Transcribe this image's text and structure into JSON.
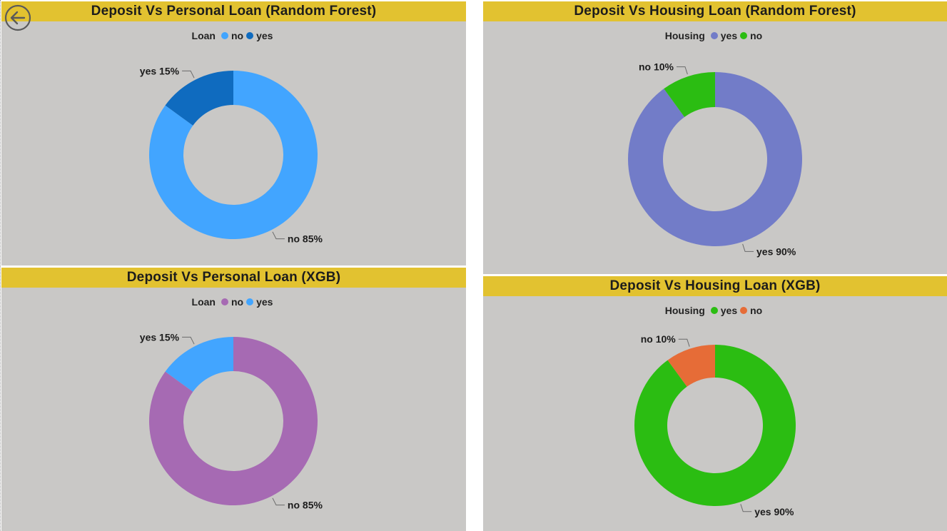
{
  "colors": {
    "title_bar": "#e2c230",
    "panel_bg": "#c9c8c6"
  },
  "chart_data": [
    {
      "type": "pie",
      "title": "Deposit Vs Personal Loan (Random Forest)",
      "legend_title": "Loan",
      "legend_placement": "top-center",
      "slices": [
        {
          "name": "no",
          "value": 85,
          "color": "#42a5ff",
          "label": "no 85%"
        },
        {
          "name": "yes",
          "value": 15,
          "color": "#0f6bbf",
          "label": "yes 15%"
        }
      ]
    },
    {
      "type": "pie",
      "title": "Deposit Vs Housing Loan (Random Forest)",
      "legend_title": "Housing",
      "legend_placement": "top-center",
      "slices": [
        {
          "name": "yes",
          "value": 90,
          "color": "#727cc8",
          "label": "yes 90%"
        },
        {
          "name": "no",
          "value": 10,
          "color": "#2bbd12",
          "label": "no 10%"
        }
      ]
    },
    {
      "type": "pie",
      "title": "Deposit Vs Personal Loan (XGB)",
      "legend_title": "Loan",
      "legend_placement": "top-center",
      "slices": [
        {
          "name": "no",
          "value": 85,
          "color": "#a66ab3",
          "label": "no 85%"
        },
        {
          "name": "yes",
          "value": 15,
          "color": "#42a5ff",
          "label": "yes 15%"
        }
      ]
    },
    {
      "type": "pie",
      "title": "Deposit Vs Housing Loan (XGB)",
      "legend_title": "Housing",
      "legend_placement": "top-center",
      "slices": [
        {
          "name": "yes",
          "value": 90,
          "color": "#2bbd12",
          "label": "yes 90%"
        },
        {
          "name": "no",
          "value": 10,
          "color": "#e66c37",
          "label": "no 10%"
        }
      ]
    }
  ]
}
